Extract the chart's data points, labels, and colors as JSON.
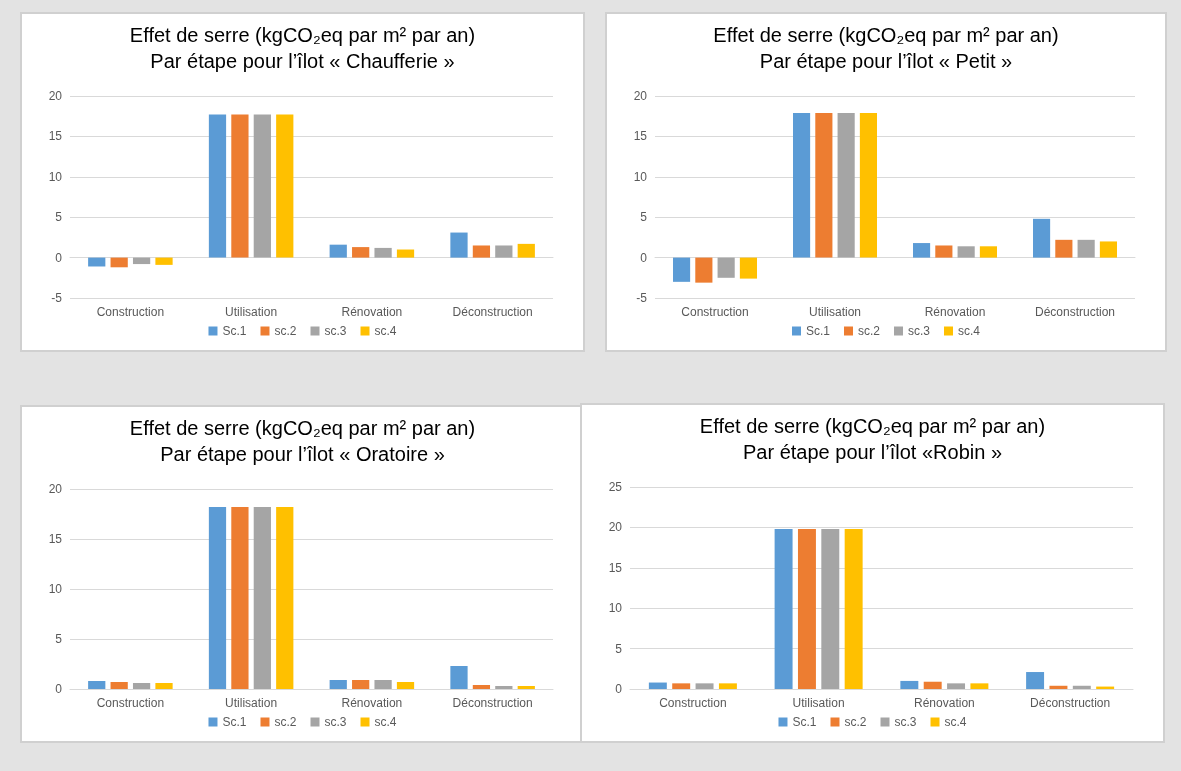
{
  "chart_data": [
    {
      "type": "bar",
      "title": "Effet de serre (kgCO₂eq par m² par an)",
      "subtitle": "Par étape pour l’îlot « Chaufferie »",
      "categories": [
        "Construction",
        "Utilisation",
        "Rénovation",
        "Déconstruction"
      ],
      "series": [
        {
          "name": "Sc.1",
          "color": "#5b9bd5",
          "values": [
            -1.1,
            17.7,
            1.6,
            3.1
          ]
        },
        {
          "name": "sc.2",
          "color": "#ed7d31",
          "values": [
            -1.2,
            17.7,
            1.3,
            1.5
          ]
        },
        {
          "name": "sc.3",
          "color": "#a5a5a5",
          "values": [
            -0.8,
            17.7,
            1.2,
            1.5
          ]
        },
        {
          "name": "sc.4",
          "color": "#ffc000",
          "values": [
            -0.9,
            17.7,
            1.0,
            1.7
          ]
        }
      ],
      "ylim": [
        -5,
        20
      ],
      "yticks": [
        -5,
        0,
        5,
        10,
        15,
        20
      ],
      "grid": "y",
      "legend": "bottom"
    },
    {
      "type": "bar",
      "title": "Effet de serre (kgCO₂eq par m² par an)",
      "subtitle": "Par étape pour l’îlot « Petit »",
      "categories": [
        "Construction",
        "Utilisation",
        "Rénovation",
        "Déconstruction"
      ],
      "series": [
        {
          "name": "Sc.1",
          "color": "#5b9bd5",
          "values": [
            -3.0,
            17.9,
            1.8,
            4.8
          ]
        },
        {
          "name": "sc.2",
          "color": "#ed7d31",
          "values": [
            -3.1,
            17.9,
            1.5,
            2.2
          ]
        },
        {
          "name": "sc.3",
          "color": "#a5a5a5",
          "values": [
            -2.5,
            17.9,
            1.4,
            2.2
          ]
        },
        {
          "name": "sc.4",
          "color": "#ffc000",
          "values": [
            -2.6,
            17.9,
            1.4,
            2.0
          ]
        }
      ],
      "ylim": [
        -5,
        20
      ],
      "yticks": [
        -5,
        0,
        5,
        10,
        15,
        20
      ],
      "grid": "y",
      "legend": "bottom"
    },
    {
      "type": "bar",
      "title": "Effet de serre (kgCO₂eq par m² par an)",
      "subtitle": "Par étape pour l’îlot « Oratoire »",
      "categories": [
        "Construction",
        "Utilisation",
        "Rénovation",
        "Déconstruction"
      ],
      "series": [
        {
          "name": "Sc.1",
          "color": "#5b9bd5",
          "values": [
            0.8,
            18.2,
            0.9,
            2.3
          ]
        },
        {
          "name": "sc.2",
          "color": "#ed7d31",
          "values": [
            0.7,
            18.2,
            0.9,
            0.4
          ]
        },
        {
          "name": "sc.3",
          "color": "#a5a5a5",
          "values": [
            0.6,
            18.2,
            0.9,
            0.3
          ]
        },
        {
          "name": "sc.4",
          "color": "#ffc000",
          "values": [
            0.6,
            18.2,
            0.7,
            0.3
          ]
        }
      ],
      "ylim": [
        0,
        20
      ],
      "yticks": [
        0,
        5,
        10,
        15,
        20
      ],
      "grid": "y",
      "legend": "bottom"
    },
    {
      "type": "bar",
      "title": "Effet de serre (kgCO₂eq par m² par an)",
      "subtitle": "Par étape pour l’îlot «Robin »",
      "categories": [
        "Construction",
        "Utilisation",
        "Rénovation",
        "Déconstruction"
      ],
      "series": [
        {
          "name": "Sc.1",
          "color": "#5b9bd5",
          "values": [
            0.8,
            19.8,
            1.0,
            2.1
          ]
        },
        {
          "name": "sc.2",
          "color": "#ed7d31",
          "values": [
            0.7,
            19.8,
            0.9,
            0.4
          ]
        },
        {
          "name": "sc.3",
          "color": "#a5a5a5",
          "values": [
            0.7,
            19.8,
            0.7,
            0.4
          ]
        },
        {
          "name": "sc.4",
          "color": "#ffc000",
          "values": [
            0.7,
            19.8,
            0.7,
            0.3
          ]
        }
      ],
      "ylim": [
        0,
        25
      ],
      "yticks": [
        0,
        5,
        10,
        15,
        20,
        25
      ],
      "grid": "y",
      "legend": "bottom"
    }
  ]
}
